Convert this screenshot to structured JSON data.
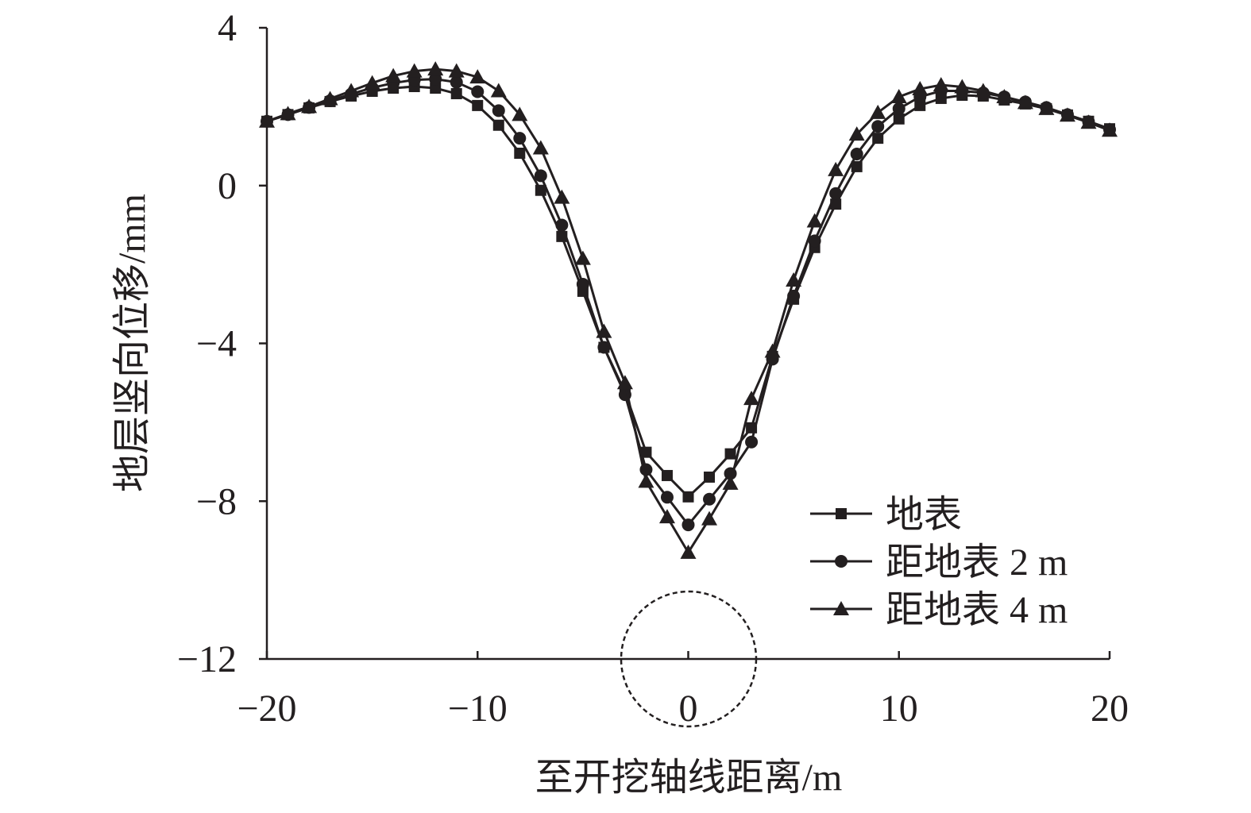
{
  "chart_data": {
    "type": "line",
    "title": "",
    "xlabel": "至开挖轴线距离/m",
    "ylabel": "地层竖向位移/mm",
    "xlim": [
      -20,
      20
    ],
    "ylim": [
      -12,
      4
    ],
    "xticks": [
      -20,
      -10,
      0,
      10,
      20
    ],
    "xtick_labels": [
      "−20",
      "−10",
      "0",
      "10",
      "20"
    ],
    "yticks": [
      4,
      0,
      -4,
      -8,
      -12
    ],
    "ytick_labels": [
      "4",
      "0",
      "−4",
      "−8",
      "−12"
    ],
    "grid": false,
    "legend_position": "bottom-right",
    "annotation": "dashed circle at tunnel axis (x=0, y=-12)",
    "x": [
      -20,
      -19,
      -18,
      -17,
      -16,
      -15,
      -14,
      -13,
      -12,
      -11,
      -10,
      -9,
      -8,
      -7,
      -6,
      -5,
      -4,
      -3,
      -2,
      -1,
      0,
      1,
      2,
      3,
      4,
      5,
      6,
      7,
      8,
      9,
      10,
      11,
      12,
      13,
      14,
      15,
      16,
      17,
      18,
      19,
      20
    ],
    "series": [
      {
        "name": "地表",
        "marker": "square",
        "values": [
          1.63,
          1.8,
          1.97,
          2.13,
          2.27,
          2.39,
          2.47,
          2.51,
          2.47,
          2.33,
          2.03,
          1.53,
          0.82,
          -0.12,
          -1.29,
          -2.68,
          -4.1,
          -5.24,
          -6.76,
          -7.35,
          -7.89,
          -7.39,
          -6.8,
          -6.14,
          -4.33,
          -2.88,
          -1.57,
          -0.47,
          0.48,
          1.2,
          1.69,
          2.03,
          2.21,
          2.29,
          2.27,
          2.17,
          2.07,
          1.95,
          1.79,
          1.63,
          1.44
        ]
      },
      {
        "name": "距地表 2 m",
        "marker": "circle",
        "values": [
          1.63,
          1.8,
          1.98,
          2.15,
          2.32,
          2.48,
          2.6,
          2.68,
          2.7,
          2.62,
          2.38,
          1.9,
          1.2,
          0.25,
          -1.0,
          -2.5,
          -4.1,
          -5.3,
          -7.2,
          -7.9,
          -8.6,
          -7.95,
          -7.3,
          -6.5,
          -4.4,
          -2.8,
          -1.4,
          -0.2,
          0.8,
          1.5,
          1.95,
          2.25,
          2.4,
          2.4,
          2.35,
          2.25,
          2.12,
          1.98,
          1.8,
          1.62,
          1.42
        ]
      },
      {
        "name": "距地表 4 m",
        "marker": "triangle",
        "values": [
          1.63,
          1.82,
          2.0,
          2.2,
          2.4,
          2.6,
          2.78,
          2.9,
          2.95,
          2.9,
          2.75,
          2.4,
          1.8,
          0.95,
          -0.3,
          -1.85,
          -3.7,
          -5.0,
          -7.5,
          -8.4,
          -9.3,
          -8.45,
          -7.55,
          -5.4,
          -4.2,
          -2.4,
          -0.9,
          0.4,
          1.3,
          1.85,
          2.25,
          2.45,
          2.55,
          2.5,
          2.4,
          2.25,
          2.1,
          1.95,
          1.78,
          1.6,
          1.4
        ]
      }
    ],
    "line_color": "#231f20"
  }
}
